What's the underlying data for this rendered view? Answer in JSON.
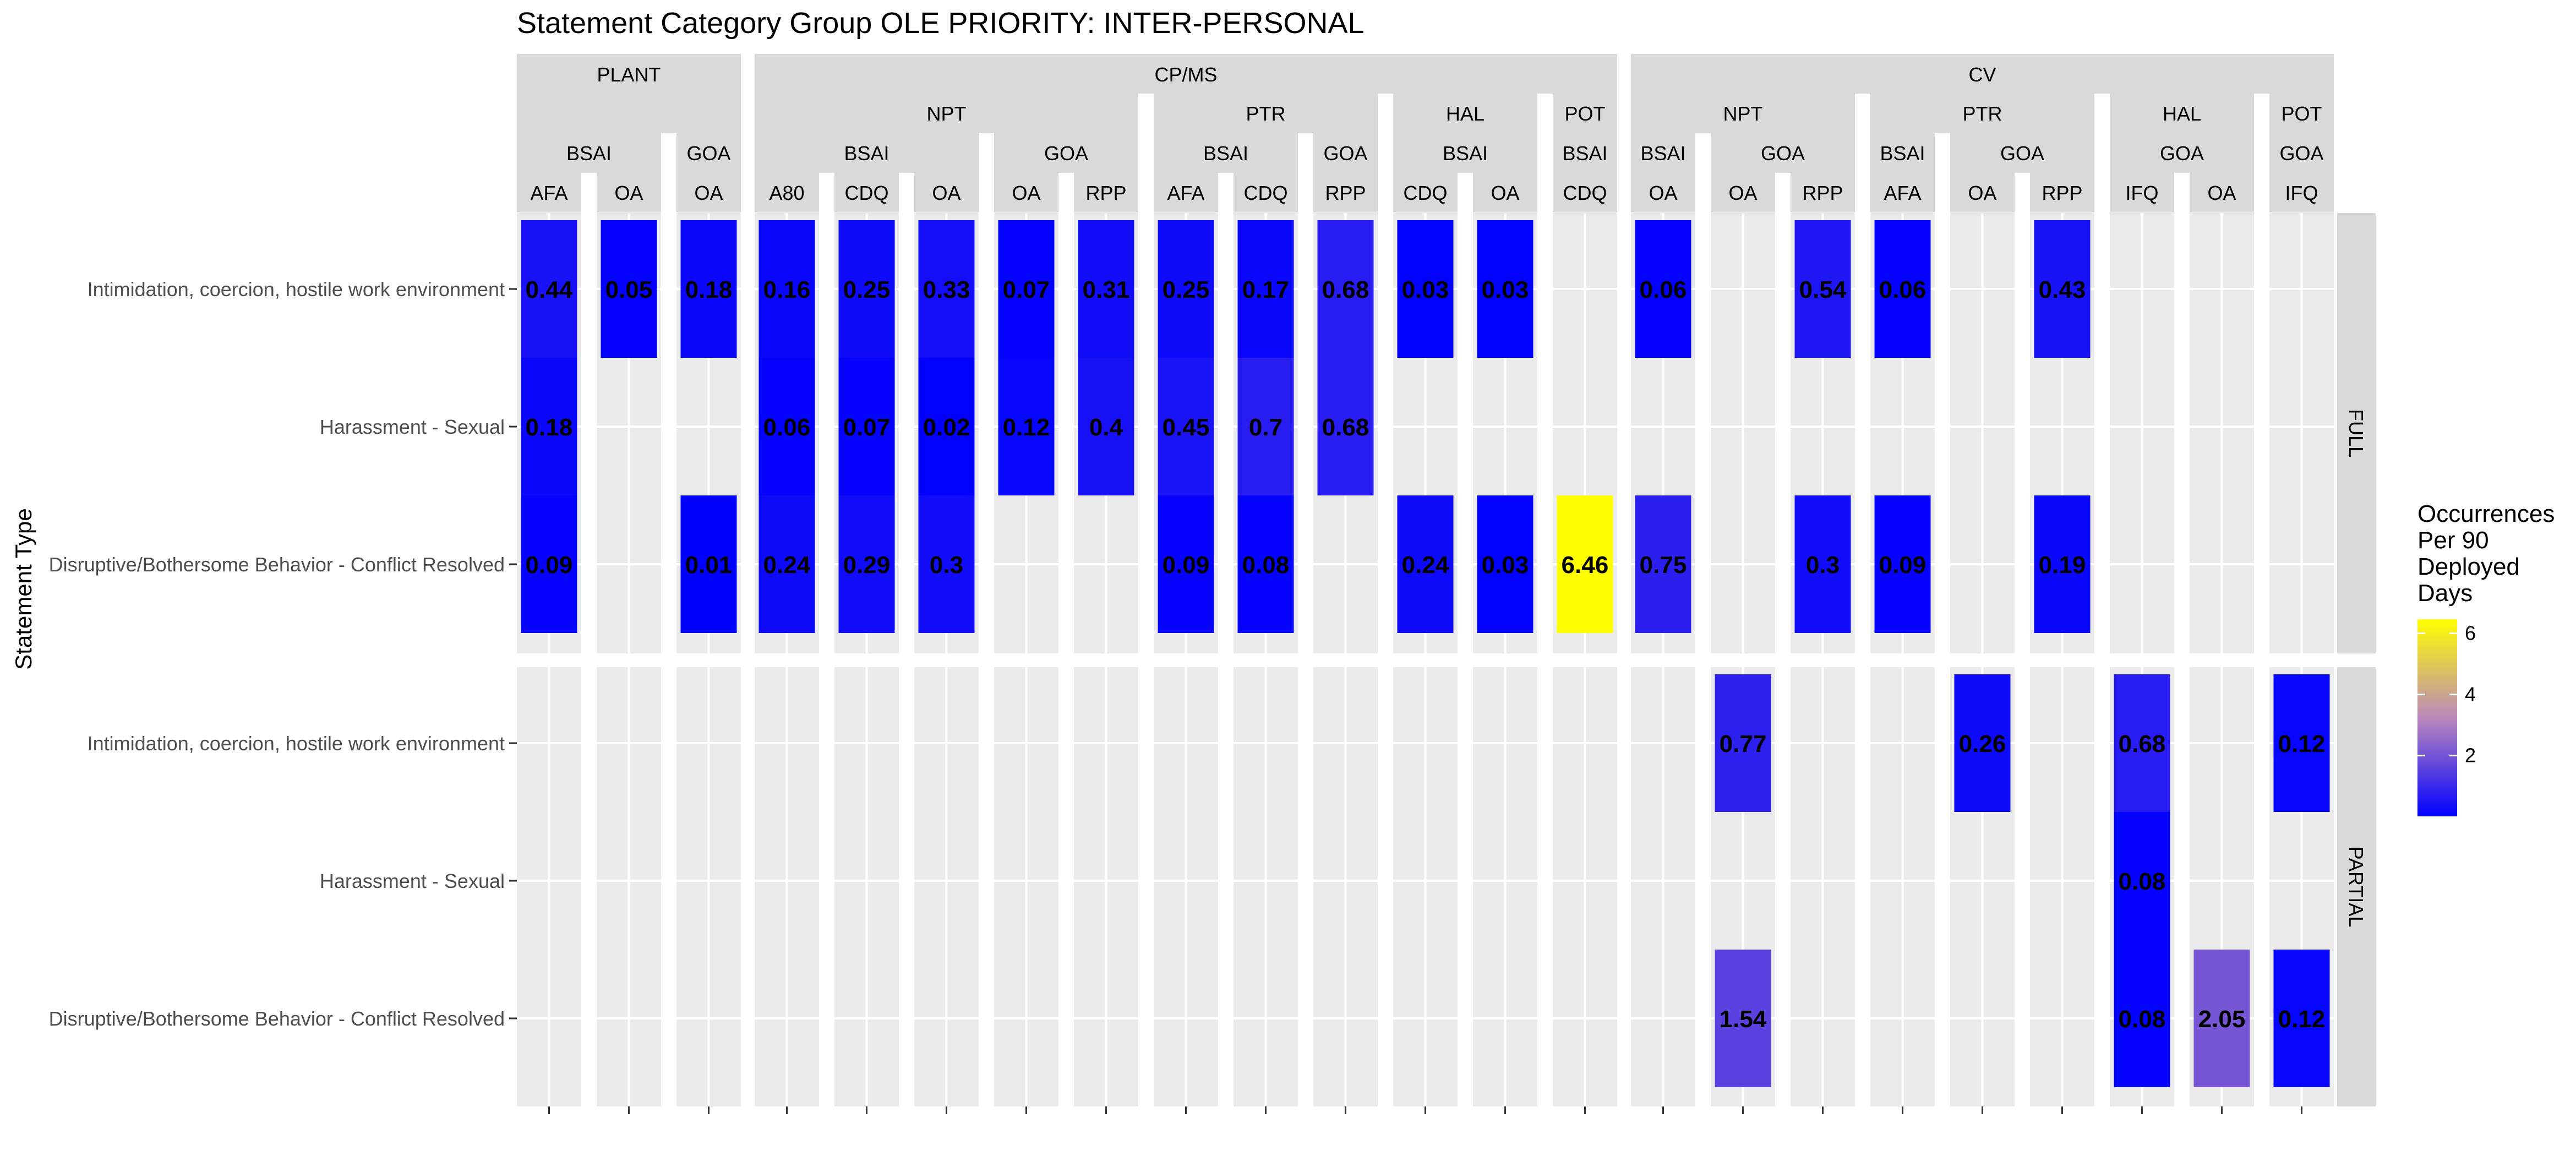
{
  "chart_data": {
    "type": "heatmap",
    "title": "Statement Category Group OLE PRIORITY: INTER-PERSONAL",
    "ylabel": "Statement Type",
    "legend": {
      "title_lines": [
        "Occurrences",
        "Per 90",
        "Deployed",
        "Days"
      ],
      "ticks": [
        "2",
        "4",
        "6"
      ],
      "tick_values": [
        2,
        4,
        6
      ],
      "range": [
        0.01,
        6.46
      ],
      "colors": {
        "low": "#0000FF",
        "mid": "#BB88BB",
        "high": "#FFFF00"
      },
      "placement": "right"
    },
    "rows": [
      "Intimidation, coercion, hostile work environment",
      "Harassment - Sexual",
      "Disruptive/Bothersome Behavior - Conflict Resolved"
    ],
    "row_facets": [
      "FULL",
      "PARTIAL"
    ],
    "top_groups": [
      {
        "label": "PLANT",
        "start": 0,
        "end": 2
      },
      {
        "label": "CP/MS",
        "start": 3,
        "end": 13
      },
      {
        "label": "CV",
        "start": 14,
        "end": 22
      }
    ],
    "sub_groups": [
      {
        "label": "",
        "start": 0,
        "end": 2
      },
      {
        "label": "NPT",
        "start": 3,
        "end": 7
      },
      {
        "label": "PTR",
        "start": 8,
        "end": 10
      },
      {
        "label": "HAL",
        "start": 11,
        "end": 12
      },
      {
        "label": "POT",
        "start": 13,
        "end": 13
      },
      {
        "label": "NPT",
        "start": 14,
        "end": 16
      },
      {
        "label": "PTR",
        "start": 17,
        "end": 19
      },
      {
        "label": "HAL",
        "start": 20,
        "end": 21
      },
      {
        "label": "POT",
        "start": 22,
        "end": 22
      }
    ],
    "areas": [
      {
        "label": "BSAI",
        "start": 0,
        "end": 1
      },
      {
        "label": "GOA",
        "start": 2,
        "end": 2
      },
      {
        "label": "BSAI",
        "start": 3,
        "end": 5
      },
      {
        "label": "GOA",
        "start": 6,
        "end": 7
      },
      {
        "label": "BSAI",
        "start": 8,
        "end": 9
      },
      {
        "label": "GOA",
        "start": 10,
        "end": 10
      },
      {
        "label": "BSAI",
        "start": 11,
        "end": 12
      },
      {
        "label": "BSAI",
        "start": 13,
        "end": 13
      },
      {
        "label": "BSAI",
        "start": 14,
        "end": 14
      },
      {
        "label": "GOA",
        "start": 15,
        "end": 16
      },
      {
        "label": "BSAI",
        "start": 17,
        "end": 17
      },
      {
        "label": "GOA",
        "start": 18,
        "end": 19
      },
      {
        "label": "GOA",
        "start": 20,
        "end": 21
      },
      {
        "label": "GOA",
        "start": 22,
        "end": 22
      }
    ],
    "columns": [
      "AFA",
      "OA",
      "OA",
      "A80",
      "CDQ",
      "OA",
      "OA",
      "RPP",
      "AFA",
      "CDQ",
      "RPP",
      "CDQ",
      "OA",
      "CDQ",
      "OA",
      "OA",
      "RPP",
      "AFA",
      "OA",
      "RPP",
      "IFQ",
      "OA",
      "IFQ"
    ],
    "cells": [
      {
        "facet": "FULL",
        "row": 0,
        "col": 0,
        "value": 0.44,
        "label": "0.44"
      },
      {
        "facet": "FULL",
        "row": 0,
        "col": 1,
        "value": 0.05,
        "label": "0.05"
      },
      {
        "facet": "FULL",
        "row": 0,
        "col": 2,
        "value": 0.18,
        "label": "0.18"
      },
      {
        "facet": "FULL",
        "row": 0,
        "col": 3,
        "value": 0.16,
        "label": "0.16"
      },
      {
        "facet": "FULL",
        "row": 0,
        "col": 4,
        "value": 0.25,
        "label": "0.25"
      },
      {
        "facet": "FULL",
        "row": 0,
        "col": 5,
        "value": 0.33,
        "label": "0.33"
      },
      {
        "facet": "FULL",
        "row": 0,
        "col": 6,
        "value": 0.07,
        "label": "0.07"
      },
      {
        "facet": "FULL",
        "row": 0,
        "col": 7,
        "value": 0.31,
        "label": "0.31"
      },
      {
        "facet": "FULL",
        "row": 0,
        "col": 8,
        "value": 0.25,
        "label": "0.25"
      },
      {
        "facet": "FULL",
        "row": 0,
        "col": 9,
        "value": 0.17,
        "label": "0.17"
      },
      {
        "facet": "FULL",
        "row": 0,
        "col": 10,
        "value": 0.68,
        "label": "0.68"
      },
      {
        "facet": "FULL",
        "row": 0,
        "col": 11,
        "value": 0.03,
        "label": "0.03"
      },
      {
        "facet": "FULL",
        "row": 0,
        "col": 12,
        "value": 0.03,
        "label": "0.03"
      },
      {
        "facet": "FULL",
        "row": 0,
        "col": 14,
        "value": 0.06,
        "label": "0.06"
      },
      {
        "facet": "FULL",
        "row": 0,
        "col": 16,
        "value": 0.54,
        "label": "0.54"
      },
      {
        "facet": "FULL",
        "row": 0,
        "col": 17,
        "value": 0.06,
        "label": "0.06"
      },
      {
        "facet": "FULL",
        "row": 0,
        "col": 19,
        "value": 0.43,
        "label": "0.43"
      },
      {
        "facet": "FULL",
        "row": 1,
        "col": 0,
        "value": 0.18,
        "label": "0.18"
      },
      {
        "facet": "FULL",
        "row": 1,
        "col": 3,
        "value": 0.06,
        "label": "0.06"
      },
      {
        "facet": "FULL",
        "row": 1,
        "col": 4,
        "value": 0.07,
        "label": "0.07"
      },
      {
        "facet": "FULL",
        "row": 1,
        "col": 5,
        "value": 0.02,
        "label": "0.02"
      },
      {
        "facet": "FULL",
        "row": 1,
        "col": 6,
        "value": 0.12,
        "label": "0.12"
      },
      {
        "facet": "FULL",
        "row": 1,
        "col": 7,
        "value": 0.4,
        "label": "0.4"
      },
      {
        "facet": "FULL",
        "row": 1,
        "col": 8,
        "value": 0.45,
        "label": "0.45"
      },
      {
        "facet": "FULL",
        "row": 1,
        "col": 9,
        "value": 0.7,
        "label": "0.7"
      },
      {
        "facet": "FULL",
        "row": 1,
        "col": 10,
        "value": 0.68,
        "label": "0.68"
      },
      {
        "facet": "FULL",
        "row": 2,
        "col": 0,
        "value": 0.09,
        "label": "0.09"
      },
      {
        "facet": "FULL",
        "row": 2,
        "col": 2,
        "value": 0.01,
        "label": "0.01"
      },
      {
        "facet": "FULL",
        "row": 2,
        "col": 3,
        "value": 0.24,
        "label": "0.24"
      },
      {
        "facet": "FULL",
        "row": 2,
        "col": 4,
        "value": 0.29,
        "label": "0.29"
      },
      {
        "facet": "FULL",
        "row": 2,
        "col": 5,
        "value": 0.3,
        "label": "0.3"
      },
      {
        "facet": "FULL",
        "row": 2,
        "col": 8,
        "value": 0.09,
        "label": "0.09"
      },
      {
        "facet": "FULL",
        "row": 2,
        "col": 9,
        "value": 0.08,
        "label": "0.08"
      },
      {
        "facet": "FULL",
        "row": 2,
        "col": 11,
        "value": 0.24,
        "label": "0.24"
      },
      {
        "facet": "FULL",
        "row": 2,
        "col": 12,
        "value": 0.03,
        "label": "0.03"
      },
      {
        "facet": "FULL",
        "row": 2,
        "col": 13,
        "value": 6.46,
        "label": "6.46"
      },
      {
        "facet": "FULL",
        "row": 2,
        "col": 14,
        "value": 0.75,
        "label": "0.75"
      },
      {
        "facet": "FULL",
        "row": 2,
        "col": 16,
        "value": 0.3,
        "label": "0.3"
      },
      {
        "facet": "FULL",
        "row": 2,
        "col": 17,
        "value": 0.09,
        "label": "0.09"
      },
      {
        "facet": "FULL",
        "row": 2,
        "col": 19,
        "value": 0.19,
        "label": "0.19"
      },
      {
        "facet": "PARTIAL",
        "row": 0,
        "col": 15,
        "value": 0.77,
        "label": "0.77"
      },
      {
        "facet": "PARTIAL",
        "row": 0,
        "col": 18,
        "value": 0.26,
        "label": "0.26"
      },
      {
        "facet": "PARTIAL",
        "row": 0,
        "col": 20,
        "value": 0.68,
        "label": "0.68"
      },
      {
        "facet": "PARTIAL",
        "row": 0,
        "col": 22,
        "value": 0.12,
        "label": "0.12"
      },
      {
        "facet": "PARTIAL",
        "row": 1,
        "col": 20,
        "value": 0.08,
        "label": "0.08"
      },
      {
        "facet": "PARTIAL",
        "row": 2,
        "col": 15,
        "value": 1.54,
        "label": "1.54"
      },
      {
        "facet": "PARTIAL",
        "row": 2,
        "col": 20,
        "value": 0.08,
        "label": "0.08"
      },
      {
        "facet": "PARTIAL",
        "row": 2,
        "col": 21,
        "value": 2.05,
        "label": "2.05"
      },
      {
        "facet": "PARTIAL",
        "row": 2,
        "col": 22,
        "value": 0.12,
        "label": "0.12"
      }
    ]
  }
}
